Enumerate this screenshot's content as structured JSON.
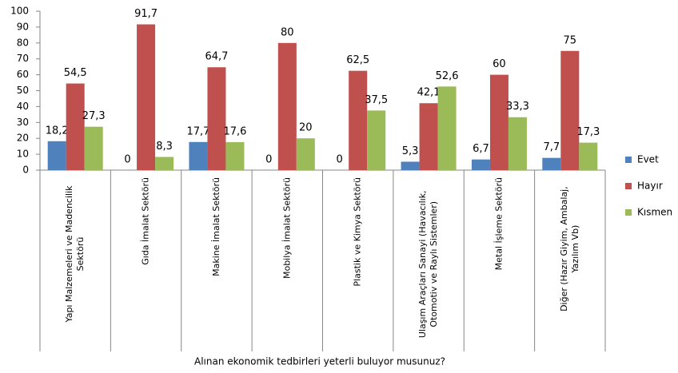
{
  "chart_data": {
    "type": "bar",
    "x_label": "Alınan ekonomik tedbirleri yeterli buluyor musunuz?",
    "categories": [
      "Yapı Malzemeleri ve Madencilik Sektörü",
      "Gıda İmalat Sektörü",
      "Makine İmalat Sektörü",
      "Mobilya İmalat Sektörü",
      "Plastik ve Kimya Sektörü",
      "Ulaşım Araçları Sanayi (Havacılık, Otomotiv ve Raylı Sistemler)",
      "Metal İşleme Sektörü",
      "Diğer (Hazır Giyim, Ambalaj, Yazılım Vb)"
    ],
    "series": [
      {
        "name": "Evet",
        "color": "#4f81bd",
        "values": [
          18.2,
          0,
          17.7,
          0,
          0,
          5.3,
          6.7,
          7.7
        ],
        "value_labels": [
          "18,2",
          "0",
          "17,7",
          "0",
          "0",
          "5,3",
          "6,7",
          "7,7"
        ]
      },
      {
        "name": "Hayır",
        "color": "#c0504d",
        "values": [
          54.5,
          91.7,
          64.7,
          80,
          62.5,
          42.1,
          60,
          75
        ],
        "value_labels": [
          "54,5",
          "91,7",
          "64,7",
          "80",
          "62,5",
          "42,1",
          "60",
          "75"
        ]
      },
      {
        "name": "Kısmen",
        "color": "#9bbb59",
        "values": [
          27.3,
          8.3,
          17.6,
          20,
          37.5,
          52.6,
          33.3,
          17.3
        ],
        "value_labels": [
          "27,3",
          "8,3",
          "17,6",
          "20",
          "37,5",
          "52,6",
          "33,3",
          "17,3"
        ]
      }
    ],
    "ylim": [
      0,
      100
    ],
    "yticks": [
      0,
      10,
      20,
      30,
      40,
      50,
      60,
      70,
      80,
      90,
      100
    ],
    "grid": false,
    "legend": "right"
  }
}
